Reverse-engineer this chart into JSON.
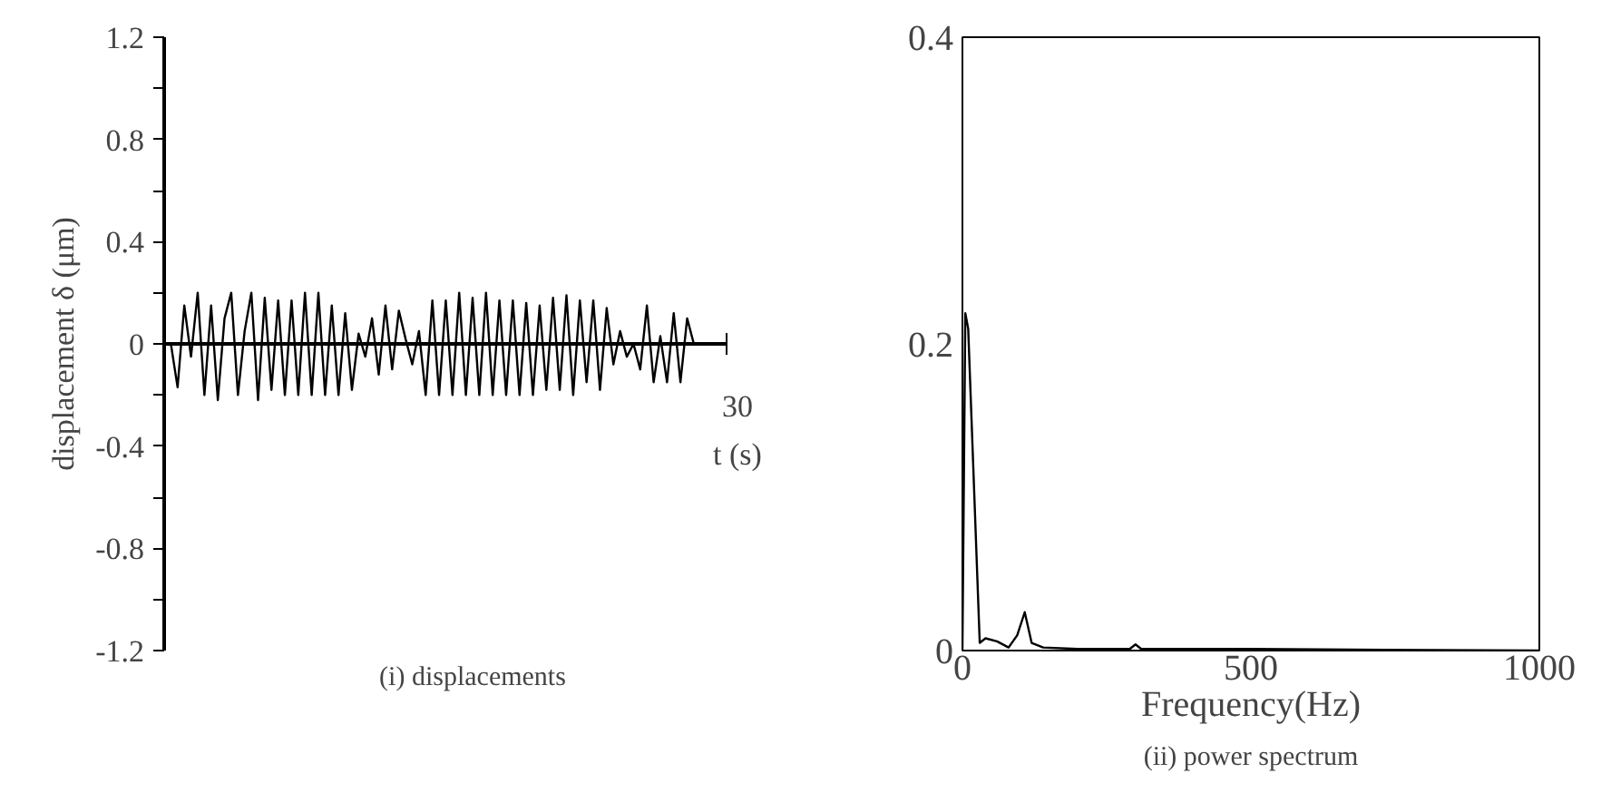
{
  "chart_data": [
    {
      "type": "line",
      "title": "(i) displacements",
      "annotations": [
        "30",
        "t (s)"
      ],
      "ylabel": "displacement δ (μm)",
      "ylim": [
        -1.2,
        1.2
      ],
      "yticks": [
        -1.2,
        {
          "value": -1.0,
          "label": null
        },
        -0.8,
        {
          "value": -0.6,
          "label": null
        },
        -0.4,
        {
          "value": -0.2,
          "label": null
        },
        0,
        {
          "value": 0.2,
          "label": null
        },
        0.4,
        {
          "value": 0.6,
          "label": null
        },
        0.8,
        {
          "value": 1.0,
          "label": null
        },
        1.2
      ],
      "categories": [
        null,
        null,
        null,
        null,
        null,
        null,
        null,
        null,
        null,
        null,
        null,
        null,
        null,
        null,
        null,
        null,
        null,
        null,
        null,
        null,
        null,
        null,
        null,
        null,
        null,
        null,
        null,
        null,
        null,
        null,
        null,
        null,
        null,
        null,
        null,
        null,
        null,
        null,
        null,
        null,
        null,
        null,
        null,
        null,
        null,
        null,
        null,
        null,
        null,
        null,
        null,
        null,
        null,
        null,
        null,
        null,
        null,
        null,
        null,
        null,
        null,
        null,
        null,
        null,
        null,
        null,
        null,
        null,
        null,
        null,
        null,
        null,
        null,
        null,
        null,
        null,
        null,
        null,
        null
      ],
      "series": [
        {
          "color": "#000000",
          "values": [
            0,
            -0.17,
            0.15,
            -0.05,
            0.2,
            -0.2,
            0.15,
            -0.22,
            0.1,
            0.2,
            -0.2,
            0.05,
            0.2,
            -0.22,
            0.18,
            -0.18,
            0.17,
            -0.2,
            0.17,
            -0.2,
            0.2,
            -0.2,
            0.2,
            -0.2,
            0.15,
            -0.2,
            0.12,
            -0.18,
            0.04,
            -0.05,
            0.1,
            -0.12,
            0.15,
            -0.1,
            0.13,
            0.02,
            -0.08,
            0.05,
            -0.2,
            0.17,
            -0.2,
            0.17,
            -0.2,
            0.2,
            -0.2,
            0.18,
            -0.2,
            0.2,
            -0.2,
            0.17,
            -0.2,
            0.17,
            -0.2,
            0.16,
            -0.2,
            0.15,
            -0.18,
            0.18,
            -0.18,
            0.19,
            -0.2,
            0.17,
            -0.15,
            0.17,
            -0.18,
            0.14,
            -0.08,
            0.05,
            -0.05,
            0.0,
            -0.1,
            0.15,
            -0.15,
            0.03,
            -0.15,
            0.12,
            -0.15,
            0.1,
            0
          ]
        }
      ]
    },
    {
      "type": "line",
      "title": "(ii) power spectrum",
      "xlabel": "Frequency(Hz)",
      "xlim": [
        0,
        1000
      ],
      "xticks": [
        0,
        500,
        1000
      ],
      "ylim": [
        0,
        0.4
      ],
      "yticks": [
        0,
        0.2,
        0.4
      ],
      "x": [
        0,
        5,
        10,
        30,
        40,
        60,
        80,
        95,
        108,
        120,
        140,
        200,
        290,
        300,
        310,
        500,
        1000
      ],
      "series": [
        {
          "color": "#000000",
          "values": [
            0,
            0.22,
            0.21,
            0.005,
            0.008,
            0.006,
            0.002,
            0.01,
            0.025,
            0.005,
            0.002,
            0.001,
            0.001,
            0.004,
            0.001,
            0.001,
            0
          ]
        }
      ]
    }
  ]
}
